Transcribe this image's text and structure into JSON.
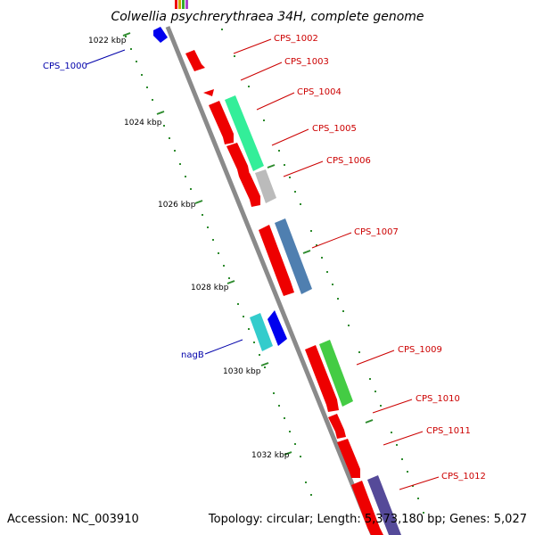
{
  "title": "Colwellia psychrerythraea 34H, complete genome",
  "footer": {
    "accession": "Accession: NC_003910",
    "summary": "Topology: circular; Length: 5,373,180 bp; Genes: 5,027"
  },
  "colors": {
    "backbone": "#8a8a8a",
    "tick": "#2e8b2e",
    "forward_label": "#cc0000",
    "reverse_label": "#0000aa"
  },
  "kbp_ticks": [
    "1022 kbp",
    "1024 kbp",
    "1026 kbp",
    "1028 kbp",
    "1030 kbp",
    "1032 kbp"
  ],
  "gene_labels": [
    {
      "text": "CPS_1000",
      "strand": "reverse"
    },
    {
      "text": "CPS_1002",
      "strand": "forward"
    },
    {
      "text": "CPS_1003",
      "strand": "forward"
    },
    {
      "text": "CPS_1004",
      "strand": "forward"
    },
    {
      "text": "CPS_1005",
      "strand": "forward"
    },
    {
      "text": "CPS_1006",
      "strand": "forward"
    },
    {
      "text": "CPS_1007",
      "strand": "forward"
    },
    {
      "text": "nagB",
      "strand": "reverse"
    },
    {
      "text": "CPS_1009",
      "strand": "forward"
    },
    {
      "text": "CPS_1010",
      "strand": "forward"
    },
    {
      "text": "CPS_1011",
      "strand": "forward"
    },
    {
      "text": "CPS_1012",
      "strand": "forward"
    }
  ],
  "feature_colors": {
    "cds_forward": "#ee0000",
    "cds_reverse": "#0000ee",
    "cog_green": "#33ee99",
    "cog_grey": "#bbbbbb",
    "cog_steel": "#4f7fb0",
    "cog_teal": "#33cccc",
    "cog_lime": "#44cc44",
    "cog_slate": "#554a99"
  }
}
